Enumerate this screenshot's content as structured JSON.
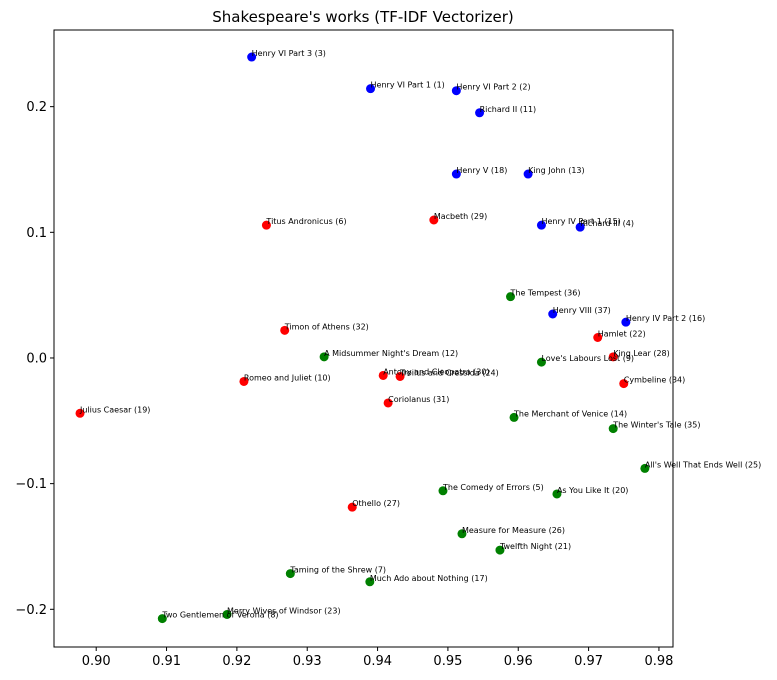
{
  "chart_data": {
    "type": "scatter",
    "title": "Shakespeare's works (TF-IDF Vectorizer)",
    "xlabel": "",
    "ylabel": "",
    "xlim": [
      0.894,
      0.982
    ],
    "ylim": [
      -0.23,
      0.261
    ],
    "xticks": [
      0.9,
      0.91,
      0.92,
      0.93,
      0.94,
      0.95,
      0.96,
      0.97,
      0.98
    ],
    "xtick_labels": [
      "0.90",
      "0.91",
      "0.92",
      "0.93",
      "0.94",
      "0.95",
      "0.96",
      "0.97",
      "0.98"
    ],
    "yticks": [
      -0.2,
      -0.1,
      0.0,
      0.1,
      0.2
    ],
    "ytick_labels": [
      "−0.2",
      "−0.1",
      "0.0",
      "0.1",
      "0.2"
    ],
    "grid": false,
    "colors": {
      "blue": "#0000ff",
      "red": "#ff0000",
      "green": "#008000"
    },
    "points": [
      {
        "label": "Henry VI Part 3 (3)",
        "x": 0.9221,
        "y": 0.2395,
        "color": "blue"
      },
      {
        "label": "Henry VI Part 1 (1)",
        "x": 0.939,
        "y": 0.2143,
        "color": "blue"
      },
      {
        "label": "Henry VI Part 2 (2)",
        "x": 0.9512,
        "y": 0.2127,
        "color": "blue"
      },
      {
        "label": "Richard II (11)",
        "x": 0.9545,
        "y": 0.1951,
        "color": "blue"
      },
      {
        "label": "Henry V (18)",
        "x": 0.9512,
        "y": 0.1464,
        "color": "blue"
      },
      {
        "label": "King John (13)",
        "x": 0.9614,
        "y": 0.1464,
        "color": "blue"
      },
      {
        "label": "Henry IV Part 1 (15)",
        "x": 0.9633,
        "y": 0.1057,
        "color": "blue"
      },
      {
        "label": "Richard III (4)",
        "x": 0.9688,
        "y": 0.1041,
        "color": "blue"
      },
      {
        "label": "Henry VIII (37)",
        "x": 0.9649,
        "y": 0.035,
        "color": "blue"
      },
      {
        "label": "Henry IV Part 2 (16)",
        "x": 0.9753,
        "y": 0.0285,
        "color": "blue"
      },
      {
        "label": "Titus Andronicus (6)",
        "x": 0.9242,
        "y": 0.1057,
        "color": "red"
      },
      {
        "label": "Macbeth (29)",
        "x": 0.948,
        "y": 0.1098,
        "color": "red"
      },
      {
        "label": "Timon of Athens (32)",
        "x": 0.9268,
        "y": 0.022,
        "color": "red"
      },
      {
        "label": "Hamlet (22)",
        "x": 0.9713,
        "y": 0.0163,
        "color": "red"
      },
      {
        "label": "King Lear (28)",
        "x": 0.9735,
        "y": 0.0009,
        "color": "red"
      },
      {
        "label": "Cymbeline (34)",
        "x": 0.975,
        "y": -0.0204,
        "color": "red"
      },
      {
        "label": "Antony and Cleopatra (30)",
        "x": 0.9408,
        "y": -0.0139,
        "color": "red"
      },
      {
        "label": "Troilus and Cressida (24)",
        "x": 0.9432,
        "y": -0.0147,
        "color": "red"
      },
      {
        "label": "Romeo and Juliet (10)",
        "x": 0.921,
        "y": -0.0187,
        "color": "red"
      },
      {
        "label": "Coriolanus (31)",
        "x": 0.9415,
        "y": -0.0358,
        "color": "red"
      },
      {
        "label": "Julius Caesar (19)",
        "x": 0.8977,
        "y": -0.044,
        "color": "red"
      },
      {
        "label": "Othello (27)",
        "x": 0.9364,
        "y": -0.1187,
        "color": "red"
      },
      {
        "label": "The Tempest (36)",
        "x": 0.9589,
        "y": 0.0488,
        "color": "green"
      },
      {
        "label": "A Midsummer Night's Dream (12)",
        "x": 0.9324,
        "y": 0.0009,
        "color": "green"
      },
      {
        "label": "Love's Labours Lost (9)",
        "x": 0.9633,
        "y": -0.0033,
        "color": "green"
      },
      {
        "label": "The Merchant of Venice (14)",
        "x": 0.9594,
        "y": -0.0473,
        "color": "green"
      },
      {
        "label": "The Winter's Tale (35)",
        "x": 0.9735,
        "y": -0.0562,
        "color": "green"
      },
      {
        "label": "All's Well That Ends Well (25)",
        "x": 0.978,
        "y": -0.0879,
        "color": "green"
      },
      {
        "label": "The Comedy of Errors (5)",
        "x": 0.9493,
        "y": -0.1057,
        "color": "green"
      },
      {
        "label": "As You Like It (20)",
        "x": 0.9655,
        "y": -0.1082,
        "color": "green"
      },
      {
        "label": "Measure for Measure (26)",
        "x": 0.952,
        "y": -0.1399,
        "color": "green"
      },
      {
        "label": "Twelfth Night (21)",
        "x": 0.9574,
        "y": -0.1529,
        "color": "green"
      },
      {
        "label": "Taming of the Shrew (7)",
        "x": 0.9276,
        "y": -0.1716,
        "color": "green"
      },
      {
        "label": "Much Ado about Nothing (17)",
        "x": 0.9389,
        "y": -0.1781,
        "color": "green"
      },
      {
        "label": "Merry Wives of Windsor (23)",
        "x": 0.9186,
        "y": -0.2041,
        "color": "green"
      },
      {
        "label": "Two Gentlemen of Verona (8)",
        "x": 0.9094,
        "y": -0.2074,
        "color": "green"
      }
    ]
  }
}
